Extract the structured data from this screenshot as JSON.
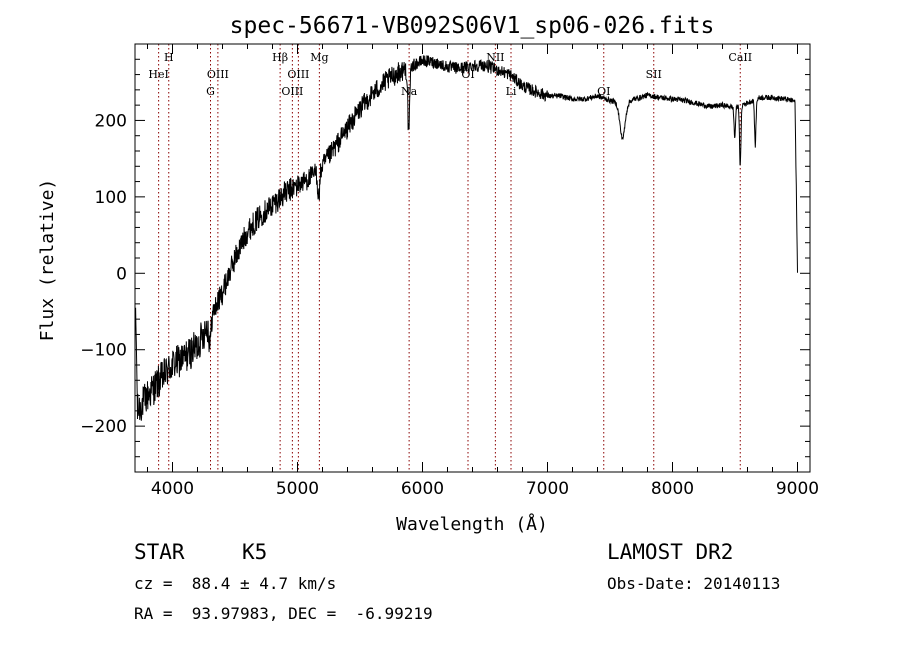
{
  "chart_data": {
    "type": "line",
    "title": "spec-56671-VB092S06V1_sp06-026.fits",
    "xlabel": "Wavelength (Å)",
    "ylabel": "Flux (relative)",
    "xlim": [
      3700,
      9100
    ],
    "ylim": [
      -260,
      300
    ],
    "xticks": [
      4000,
      5000,
      6000,
      7000,
      8000,
      9000
    ],
    "yticks": [
      -200,
      -100,
      0,
      100,
      200
    ],
    "line_color": "#000000",
    "marker_color": "#8b0000",
    "grid": false,
    "legend": "none",
    "spectrum": {
      "anchors_x": [
        3700,
        3720,
        3800,
        3900,
        4000,
        4100,
        4200,
        4300,
        4400,
        4500,
        4600,
        4700,
        4800,
        4900,
        5000,
        5100,
        5200,
        5300,
        5400,
        5500,
        5600,
        5700,
        5800,
        5900,
        6000,
        6100,
        6200,
        6300,
        6400,
        6500,
        6600,
        6700,
        6800,
        6900,
        7000,
        7100,
        7200,
        7300,
        7400,
        7500,
        7600,
        7700,
        7800,
        7900,
        8000,
        8100,
        8200,
        8300,
        8400,
        8500,
        8600,
        8700,
        8800,
        8900,
        8980,
        9000
      ],
      "anchors_y": [
        0,
        -180,
        -160,
        -140,
        -120,
        -110,
        -95,
        -60,
        -25,
        20,
        55,
        75,
        90,
        105,
        115,
        125,
        140,
        165,
        190,
        215,
        235,
        250,
        262,
        270,
        278,
        276,
        270,
        268,
        272,
        272,
        266,
        260,
        245,
        238,
        232,
        232,
        228,
        228,
        232,
        226,
        222,
        228,
        233,
        230,
        228,
        226,
        222,
        218,
        220,
        217,
        223,
        230,
        230,
        228,
        225,
        0
      ],
      "dips": [
        {
          "x": 5890,
          "depth": 90,
          "width": 10
        },
        {
          "x": 8542,
          "depth": 80,
          "width": 8
        },
        {
          "x": 8662,
          "depth": 60,
          "width": 8
        },
        {
          "x": 8498,
          "depth": 40,
          "width": 8
        },
        {
          "x": 7600,
          "depth": 45,
          "width": 30
        },
        {
          "x": 4300,
          "depth": 30,
          "width": 12
        },
        {
          "x": 5170,
          "depth": 35,
          "width": 12
        }
      ]
    },
    "lines": [
      {
        "label": "H",
        "x": 3970,
        "row": 1
      },
      {
        "label": "HeI",
        "x": 3889,
        "row": 2
      },
      {
        "label": "OIII",
        "x": 4363,
        "row": 2
      },
      {
        "label": "G",
        "x": 4304,
        "row": 3
      },
      {
        "label": "Hβ",
        "x": 4861,
        "row": 1
      },
      {
        "label": "OIII",
        "x": 5007,
        "row": 2
      },
      {
        "label": "OIII",
        "x": 4959,
        "row": 3
      },
      {
        "label": "Mg",
        "x": 5175,
        "row": 1
      },
      {
        "label": "Na",
        "x": 5893,
        "row": 3
      },
      {
        "label": "OI",
        "x": 6364,
        "row": 2
      },
      {
        "label": "NII",
        "x": 6583,
        "row": 1
      },
      {
        "label": "Li",
        "x": 6708,
        "row": 3
      },
      {
        "label": "OI",
        "x": 7450,
        "row": 3
      },
      {
        "label": "SII",
        "x": 7850,
        "row": 2
      },
      {
        "label": "CaII",
        "x": 8542,
        "row": 1
      }
    ]
  },
  "info": {
    "object_type": "STAR",
    "subclass": "K5",
    "survey": "LAMOST DR2",
    "redshift": "cz =  88.4 ± 4.7 km/s",
    "obs_date": "Obs-Date: 20140113",
    "coords": "RA =  93.97983, DEC =  -6.99219"
  }
}
